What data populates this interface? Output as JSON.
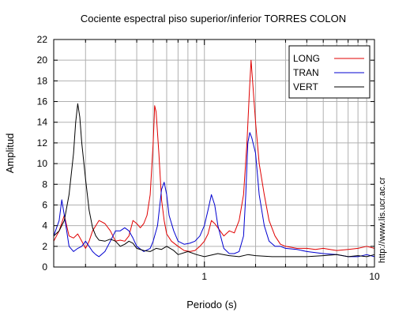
{
  "chart_data": {
    "type": "line",
    "title": "Cociente espectral piso superior/inferior  TORRES COLON",
    "xlabel": "Periodo (s)",
    "ylabel": "Amplitud",
    "xscale": "log",
    "xlim": [
      0.13,
      10
    ],
    "ylim": [
      0,
      22
    ],
    "yticks": [
      0,
      2,
      4,
      6,
      8,
      10,
      12,
      14,
      16,
      18,
      20,
      22
    ],
    "xticks": [
      1,
      10
    ],
    "xticklabels": [
      "1",
      "10"
    ],
    "grid": true,
    "legend_position": "top-right",
    "side_text": "http://www.lis.ucr.ac.cr",
    "series": [
      {
        "name": "LONG",
        "color": "#e00000",
        "x": [
          0.13,
          0.14,
          0.15,
          0.16,
          0.17,
          0.18,
          0.19,
          0.2,
          0.21,
          0.22,
          0.23,
          0.24,
          0.26,
          0.28,
          0.3,
          0.32,
          0.34,
          0.36,
          0.38,
          0.4,
          0.42,
          0.44,
          0.46,
          0.48,
          0.5,
          0.51,
          0.52,
          0.54,
          0.56,
          0.58,
          0.6,
          0.64,
          0.7,
          0.76,
          0.82,
          0.88,
          0.94,
          1.0,
          1.05,
          1.1,
          1.15,
          1.2,
          1.3,
          1.4,
          1.5,
          1.6,
          1.7,
          1.78,
          1.84,
          1.88,
          1.93,
          2.0,
          2.1,
          2.25,
          2.4,
          2.6,
          2.8,
          3.0,
          3.5,
          4.0,
          4.5,
          5.0,
          6.0,
          7.0,
          8.0,
          9.0,
          10.0
        ],
        "y": [
          2.5,
          3.5,
          5.0,
          3.0,
          2.8,
          3.2,
          2.5,
          1.8,
          2.5,
          3.5,
          4.0,
          4.5,
          4.2,
          3.5,
          2.5,
          2.6,
          2.5,
          3.0,
          4.5,
          4.2,
          3.8,
          4.2,
          5.0,
          7.0,
          12.0,
          15.6,
          15.0,
          11.0,
          6.5,
          4.5,
          3.2,
          2.5,
          2.0,
          1.6,
          1.5,
          1.6,
          2.0,
          2.5,
          3.2,
          4.5,
          4.2,
          3.8,
          3.0,
          3.5,
          3.3,
          4.5,
          7.0,
          12.0,
          17.0,
          20.0,
          17.5,
          14.0,
          10.0,
          7.0,
          4.5,
          3.0,
          2.2,
          2.0,
          1.8,
          1.8,
          1.7,
          1.8,
          1.6,
          1.7,
          1.8,
          2.0,
          1.8
        ]
      },
      {
        "name": "TRAN",
        "color": "#0000d0",
        "x": [
          0.13,
          0.14,
          0.145,
          0.15,
          0.155,
          0.16,
          0.17,
          0.18,
          0.19,
          0.2,
          0.21,
          0.22,
          0.23,
          0.24,
          0.26,
          0.28,
          0.3,
          0.32,
          0.34,
          0.36,
          0.38,
          0.4,
          0.44,
          0.48,
          0.5,
          0.53,
          0.56,
          0.58,
          0.6,
          0.62,
          0.66,
          0.7,
          0.76,
          0.82,
          0.88,
          0.94,
          1.0,
          1.05,
          1.1,
          1.15,
          1.2,
          1.3,
          1.4,
          1.5,
          1.6,
          1.7,
          1.75,
          1.8,
          1.85,
          1.9,
          2.0,
          2.1,
          2.25,
          2.4,
          2.6,
          2.8,
          3.0,
          3.5,
          4.0,
          4.5,
          5.0,
          6.0,
          7.0,
          8.0,
          9.0,
          10.0
        ],
        "y": [
          3.0,
          4.5,
          6.5,
          5.0,
          3.5,
          2.0,
          1.5,
          1.8,
          2.0,
          2.5,
          2.0,
          1.5,
          1.2,
          1.0,
          1.5,
          2.5,
          3.5,
          3.5,
          3.8,
          3.5,
          2.8,
          2.0,
          1.5,
          1.8,
          2.5,
          4.0,
          7.5,
          8.2,
          7.0,
          5.0,
          3.5,
          2.5,
          2.2,
          2.3,
          2.5,
          3.0,
          4.0,
          5.5,
          7.0,
          6.0,
          4.0,
          1.8,
          1.3,
          1.3,
          1.5,
          3.0,
          7.0,
          12.0,
          13.0,
          12.5,
          11.0,
          7.0,
          4.0,
          2.5,
          2.0,
          2.0,
          1.8,
          1.7,
          1.5,
          1.4,
          1.3,
          1.2,
          1.0,
          1.0,
          1.2,
          1.0
        ]
      },
      {
        "name": "VERT",
        "color": "#000000",
        "x": [
          0.13,
          0.14,
          0.15,
          0.16,
          0.17,
          0.175,
          0.18,
          0.185,
          0.19,
          0.2,
          0.21,
          0.22,
          0.23,
          0.24,
          0.26,
          0.28,
          0.3,
          0.32,
          0.34,
          0.36,
          0.38,
          0.4,
          0.44,
          0.48,
          0.52,
          0.56,
          0.6,
          0.66,
          0.7,
          0.8,
          0.9,
          1.0,
          1.2,
          1.4,
          1.6,
          1.8,
          2.0,
          2.5,
          3.0,
          4.0,
          5.0,
          6.0,
          7.0,
          8.0,
          9.0,
          10.0
        ],
        "y": [
          3.0,
          3.5,
          4.5,
          7.0,
          11.0,
          14.0,
          15.8,
          14.5,
          12.0,
          8.5,
          5.5,
          3.8,
          3.0,
          2.6,
          2.5,
          2.7,
          2.5,
          2.0,
          2.2,
          2.5,
          2.3,
          1.8,
          1.6,
          1.5,
          1.8,
          1.7,
          2.0,
          1.6,
          1.2,
          1.5,
          1.2,
          1.0,
          1.3,
          1.1,
          1.0,
          1.2,
          1.1,
          1.0,
          1.0,
          1.0,
          1.1,
          1.2,
          1.0,
          1.1,
          1.0,
          1.2
        ]
      }
    ]
  }
}
